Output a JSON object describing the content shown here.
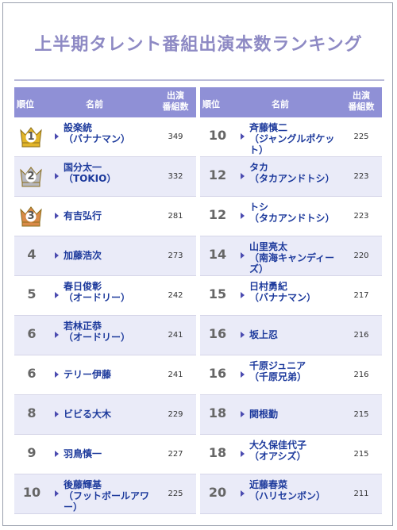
{
  "title": "上半期タレント番組出演本数ランキング",
  "headers": {
    "rank": "順位",
    "name": "名前",
    "count_line1": "出演",
    "count_line2": "番組数"
  },
  "left": [
    {
      "rank": "1",
      "medal": "gold",
      "name": "設楽統",
      "sub": "（バナナマン）",
      "count": "349"
    },
    {
      "rank": "2",
      "medal": "silver",
      "name": "国分太一",
      "sub": "（TOKIO）",
      "count": "332"
    },
    {
      "rank": "3",
      "medal": "bronze",
      "name": "有吉弘行",
      "sub": "",
      "count": "281"
    },
    {
      "rank": "4",
      "name": "加藤浩次",
      "sub": "",
      "count": "273"
    },
    {
      "rank": "5",
      "name": "春日俊彰",
      "sub": "（オードリー）",
      "count": "242"
    },
    {
      "rank": "6",
      "name": "若林正恭",
      "sub": "（オードリー）",
      "count": "241"
    },
    {
      "rank": "6",
      "name": "テリー伊藤",
      "sub": "",
      "count": "241"
    },
    {
      "rank": "8",
      "name": "ビビる大木",
      "sub": "",
      "count": "229"
    },
    {
      "rank": "9",
      "name": "羽鳥慎一",
      "sub": "",
      "count": "227"
    },
    {
      "rank": "10",
      "name": "後藤輝基",
      "sub": "（フットボールアワー）",
      "count": "225"
    }
  ],
  "right": [
    {
      "rank": "10",
      "name": "斉藤慎二",
      "sub": "（ジャングルポケット）",
      "count": "225"
    },
    {
      "rank": "12",
      "name": "タカ",
      "sub": "（タカアンドトシ）",
      "count": "223"
    },
    {
      "rank": "12",
      "name": "トシ",
      "sub": "（タカアンドトシ）",
      "count": "223"
    },
    {
      "rank": "14",
      "name": "山里亮太",
      "sub": "（南海キャンディーズ）",
      "count": "220"
    },
    {
      "rank": "15",
      "name": "日村勇紀",
      "sub": "（バナナマン）",
      "count": "217"
    },
    {
      "rank": "16",
      "name": "坂上忍",
      "sub": "",
      "count": "216"
    },
    {
      "rank": "16",
      "name": "千原ジュニア",
      "sub": "（千原兄弟）",
      "count": "216"
    },
    {
      "rank": "18",
      "name": "関根勤",
      "sub": "",
      "count": "215"
    },
    {
      "rank": "18",
      "name": "大久保佳代子",
      "sub": "（オアシズ）",
      "count": "215"
    },
    {
      "rank": "20",
      "name": "近藤春菜",
      "sub": "（ハリセンボン）",
      "count": "211"
    }
  ],
  "colors": {
    "header": "#8f90d6",
    "title": "#8e8ac4",
    "name": "#1d3a9c",
    "gold": "#e2b52a",
    "silver": "#b7b7bd",
    "bronze": "#d98a48"
  }
}
